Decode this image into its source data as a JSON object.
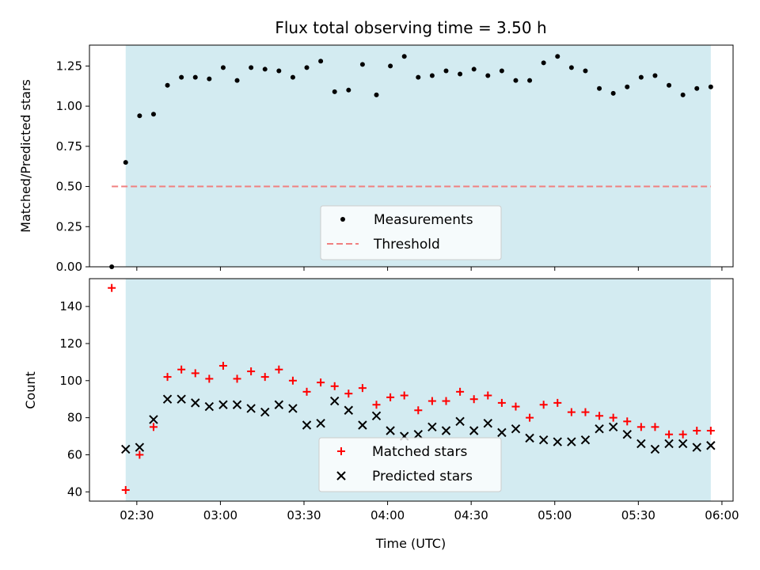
{
  "chart_data": [
    {
      "type": "scatter",
      "title": "Flux total observing time = 3.50 h",
      "xlabel": "",
      "ylabel": "Matched/Predicted stars",
      "xlim": [
        "02:13",
        "06:04"
      ],
      "ylim": [
        0,
        1.38
      ],
      "yticks": [
        "0.00",
        "0.25",
        "0.50",
        "0.75",
        "1.00",
        "1.25"
      ],
      "observing_window": [
        "02:26",
        "05:56"
      ],
      "legend_position": "bottom-center",
      "colors": {
        "measurements": "#000000",
        "threshold": "#f08080",
        "window": "#d3ebf1"
      },
      "series": [
        {
          "name": "Measurements",
          "marker": "dot",
          "x": [
            "02:21",
            "02:26",
            "02:31",
            "02:36",
            "02:41",
            "02:46",
            "02:51",
            "02:56",
            "03:01",
            "03:06",
            "03:11",
            "03:16",
            "03:21",
            "03:26",
            "03:31",
            "03:36",
            "03:41",
            "03:46",
            "03:51",
            "03:56",
            "04:01",
            "04:06",
            "04:11",
            "04:16",
            "04:21",
            "04:26",
            "04:31",
            "04:36",
            "04:41",
            "04:46",
            "04:51",
            "04:56",
            "05:01",
            "05:06",
            "05:11",
            "05:16",
            "05:21",
            "05:26",
            "05:31",
            "05:36",
            "05:41",
            "05:46",
            "05:51",
            "05:56"
          ],
          "y": [
            0.0,
            0.65,
            0.94,
            0.95,
            1.13,
            1.18,
            1.18,
            1.17,
            1.24,
            1.16,
            1.24,
            1.23,
            1.22,
            1.18,
            1.24,
            1.28,
            1.09,
            1.1,
            1.26,
            1.07,
            1.25,
            1.31,
            1.18,
            1.19,
            1.22,
            1.2,
            1.23,
            1.19,
            1.22,
            1.16,
            1.16,
            1.27,
            1.31,
            1.24,
            1.22,
            1.11,
            1.08,
            1.12,
            1.18,
            1.19,
            1.13,
            1.07,
            1.11,
            1.12
          ]
        },
        {
          "name": "Threshold",
          "marker": "dashed-line",
          "x": [
            "02:21",
            "05:56"
          ],
          "y": [
            0.5,
            0.5
          ]
        }
      ]
    },
    {
      "type": "scatter",
      "title": "",
      "xlabel": "Time (UTC)",
      "ylabel": "Count",
      "xlim": [
        "02:13",
        "06:04"
      ],
      "ylim": [
        35,
        155
      ],
      "xticks": [
        "02:30",
        "03:00",
        "03:30",
        "04:00",
        "04:30",
        "05:00",
        "05:30",
        "06:00"
      ],
      "yticks": [
        "40",
        "60",
        "80",
        "100",
        "120",
        "140"
      ],
      "observing_window": [
        "02:26",
        "05:56"
      ],
      "legend_position": "bottom-center",
      "colors": {
        "matched": "#ff0000",
        "predicted": "#000000",
        "window": "#d3ebf1"
      },
      "series": [
        {
          "name": "Matched stars",
          "marker": "plus",
          "x": [
            "02:21",
            "02:26",
            "02:31",
            "02:36",
            "02:41",
            "02:46",
            "02:51",
            "02:56",
            "03:01",
            "03:06",
            "03:11",
            "03:16",
            "03:21",
            "03:26",
            "03:31",
            "03:36",
            "03:41",
            "03:46",
            "03:51",
            "03:56",
            "04:01",
            "04:06",
            "04:11",
            "04:16",
            "04:21",
            "04:26",
            "04:31",
            "04:36",
            "04:41",
            "04:46",
            "04:51",
            "04:56",
            "05:01",
            "05:06",
            "05:11",
            "05:16",
            "05:21",
            "05:26",
            "05:31",
            "05:36",
            "05:41",
            "05:46",
            "05:51",
            "05:56"
          ],
          "y": [
            150,
            41,
            60,
            75,
            102,
            106,
            104,
            101,
            108,
            101,
            105,
            102,
            106,
            100,
            94,
            99,
            97,
            93,
            96,
            87,
            91,
            92,
            84,
            89,
            89,
            94,
            90,
            92,
            88,
            86,
            80,
            87,
            88,
            83,
            83,
            81,
            80,
            78,
            75,
            75,
            71,
            71,
            73,
            73
          ]
        },
        {
          "name": "Predicted stars",
          "marker": "x",
          "x": [
            "02:26",
            "02:31",
            "02:36",
            "02:41",
            "02:46",
            "02:51",
            "02:56",
            "03:01",
            "03:06",
            "03:11",
            "03:16",
            "03:21",
            "03:26",
            "03:31",
            "03:36",
            "03:41",
            "03:46",
            "03:51",
            "03:56",
            "04:01",
            "04:06",
            "04:11",
            "04:16",
            "04:21",
            "04:26",
            "04:31",
            "04:36",
            "04:41",
            "04:46",
            "04:51",
            "04:56",
            "05:01",
            "05:06",
            "05:11",
            "05:16",
            "05:21",
            "05:26",
            "05:31",
            "05:36",
            "05:41",
            "05:46",
            "05:51",
            "05:56"
          ],
          "y": [
            63,
            64,
            79,
            90,
            90,
            88,
            86,
            87,
            87,
            85,
            83,
            87,
            85,
            76,
            77,
            89,
            84,
            76,
            81,
            73,
            70,
            71,
            75,
            73,
            78,
            73,
            77,
            72,
            74,
            69,
            68,
            67,
            67,
            68,
            74,
            75,
            71,
            66,
            63,
            66,
            66,
            64,
            65
          ]
        }
      ]
    }
  ]
}
